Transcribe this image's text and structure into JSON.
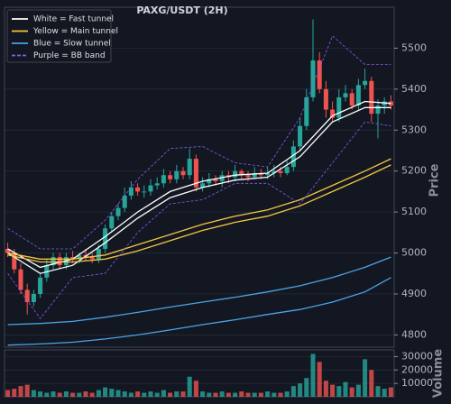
{
  "chart_data": {
    "type": "candlestick",
    "title": "PAXG/USDT (2H)",
    "y_label": "Price",
    "grid": true,
    "up_color": "#26a69a",
    "down_color": "#ef5350",
    "candles": {
      "open": [
        5010,
        5000,
        4960,
        4910,
        4880,
        4900,
        4940,
        4970,
        4990,
        4970,
        4990,
        4985,
        4995,
        4990,
        4985,
        5010,
        5060,
        5090,
        5110,
        5140,
        5160,
        5150,
        5150,
        5165,
        5170,
        5190,
        5180,
        5200,
        5190,
        5230,
        5160,
        5170,
        5180,
        5175,
        5190,
        5185,
        5200,
        5190,
        5185,
        5195,
        5190,
        5195,
        5200,
        5195,
        5210,
        5260,
        5310,
        5380,
        5470,
        5400,
        5350,
        5330,
        5380,
        5390,
        5360,
        5410,
        5420,
        5340,
        5360,
        5370
      ],
      "high": [
        5025,
        5010,
        4975,
        4925,
        4910,
        4950,
        4985,
        5000,
        5000,
        5000,
        5005,
        5000,
        5010,
        5000,
        5020,
        5070,
        5100,
        5120,
        5160,
        5175,
        5170,
        5165,
        5180,
        5185,
        5205,
        5200,
        5215,
        5210,
        5255,
        5240,
        5185,
        5195,
        5190,
        5200,
        5200,
        5215,
        5205,
        5200,
        5210,
        5205,
        5210,
        5215,
        5210,
        5225,
        5275,
        5330,
        5400,
        5570,
        5490,
        5420,
        5370,
        5400,
        5410,
        5400,
        5425,
        5450,
        5430,
        5375,
        5380,
        5385
      ],
      "low": [
        4990,
        4950,
        4900,
        4850,
        4870,
        4890,
        4930,
        4960,
        4960,
        4960,
        4975,
        4975,
        4980,
        4975,
        4975,
        5000,
        5050,
        5080,
        5100,
        5130,
        5140,
        5135,
        5140,
        5155,
        5160,
        5170,
        5170,
        5180,
        5180,
        5150,
        5150,
        5160,
        5165,
        5160,
        5170,
        5175,
        5180,
        5175,
        5180,
        5180,
        5180,
        5185,
        5185,
        5190,
        5200,
        5250,
        5300,
        5370,
        5390,
        5330,
        5320,
        5320,
        5370,
        5350,
        5350,
        5400,
        5320,
        5280,
        5340,
        5350
      ],
      "close": [
        5000,
        4960,
        4910,
        4880,
        4900,
        4940,
        4970,
        4990,
        4970,
        4990,
        4985,
        4995,
        4990,
        4985,
        5010,
        5060,
        5090,
        5110,
        5140,
        5160,
        5150,
        5150,
        5165,
        5170,
        5190,
        5180,
        5200,
        5190,
        5230,
        5160,
        5170,
        5180,
        5175,
        5190,
        5185,
        5200,
        5190,
        5185,
        5195,
        5190,
        5195,
        5200,
        5195,
        5210,
        5260,
        5310,
        5380,
        5470,
        5400,
        5350,
        5330,
        5380,
        5390,
        5360,
        5410,
        5420,
        5340,
        5360,
        5370,
        5360
      ]
    },
    "ylim": [
      4770,
      5600
    ],
    "yticks": [
      4800,
      4900,
      5000,
      5100,
      5200,
      5300,
      5400,
      5500
    ],
    "overlays": [
      {
        "name": "White = Fast tunnel",
        "color": "#ffffff",
        "dash": false,
        "lines": [
          {
            "x": [
              0,
              5,
              10,
              15,
              20,
              25,
              30,
              35,
              40,
              45,
              50,
              55,
              59
            ],
            "values": [
              5010,
              4965,
              4985,
              5040,
              5100,
              5150,
              5175,
              5190,
              5195,
              5250,
              5335,
              5370,
              5365
            ]
          },
          {
            "x": [
              0,
              5,
              10,
              15,
              20,
              25,
              30,
              35,
              40,
              45,
              50,
              55,
              59
            ],
            "values": [
              5000,
              4950,
              4970,
              5025,
              5085,
              5135,
              5160,
              5178,
              5185,
              5235,
              5320,
              5355,
              5355
            ]
          }
        ]
      },
      {
        "name": "Yellow = Main tunnel",
        "color": "#f5c542",
        "dash": false,
        "lines": [
          {
            "x": [
              0,
              5,
              10,
              15,
              20,
              25,
              30,
              35,
              40,
              45,
              50,
              55,
              59
            ],
            "values": [
              5000,
              4985,
              4985,
              4995,
              5020,
              5045,
              5070,
              5090,
              5105,
              5130,
              5165,
              5200,
              5230
            ]
          },
          {
            "x": [
              0,
              5,
              10,
              15,
              20,
              25,
              30,
              35,
              40,
              45,
              50,
              55,
              59
            ],
            "values": [
              4995,
              4978,
              4978,
              4985,
              5005,
              5030,
              5055,
              5075,
              5090,
              5115,
              5150,
              5185,
              5215
            ]
          }
        ]
      },
      {
        "name": "Blue = Slow tunnel",
        "color": "#4aa3e8",
        "dash": false,
        "lines": [
          {
            "x": [
              0,
              5,
              10,
              15,
              20,
              25,
              30,
              35,
              40,
              45,
              50,
              55,
              59
            ],
            "values": [
              4825,
              4828,
              4833,
              4843,
              4855,
              4868,
              4880,
              4892,
              4905,
              4920,
              4940,
              4965,
              4990
            ]
          },
          {
            "x": [
              0,
              5,
              10,
              15,
              20,
              25,
              30,
              35,
              40,
              45,
              50,
              55,
              59
            ],
            "values": [
              4775,
              4778,
              4782,
              4790,
              4800,
              4812,
              4825,
              4837,
              4850,
              4862,
              4880,
              4905,
              4940
            ]
          }
        ]
      },
      {
        "name": "Purple = BB band",
        "color": "#8a5cf0",
        "dash": true,
        "lines": [
          {
            "x": [
              0,
              5,
              10,
              15,
              20,
              25,
              30,
              35,
              40,
              45,
              50,
              55,
              59
            ],
            "values": [
              5060,
              5010,
              5010,
              5080,
              5180,
              5255,
              5260,
              5220,
              5210,
              5330,
              5530,
              5460,
              5460
            ]
          },
          {
            "x": [
              0,
              5,
              10,
              15,
              20,
              25,
              30,
              35,
              40,
              45,
              50,
              55,
              59
            ],
            "values": [
              4950,
              4840,
              4940,
              4950,
              5050,
              5120,
              5130,
              5170,
              5170,
              5120,
              5220,
              5320,
              5310
            ]
          }
        ]
      }
    ],
    "volume": {
      "label": "Volume",
      "ylim": [
        0,
        35000
      ],
      "yticks": [
        10000,
        20000,
        30000
      ],
      "values": [
        5000,
        6000,
        8000,
        9000,
        5000,
        4000,
        3000,
        4000,
        3000,
        4000,
        3000,
        3000,
        4000,
        3000,
        5000,
        7000,
        6000,
        5000,
        4000,
        3000,
        4000,
        3000,
        4000,
        3000,
        5000,
        3000,
        4000,
        4000,
        15000,
        12000,
        4000,
        3000,
        3000,
        4000,
        3000,
        3000,
        4000,
        3000,
        3000,
        3000,
        4000,
        3000,
        3000,
        4000,
        8000,
        10000,
        14000,
        32000,
        26000,
        12000,
        9000,
        8000,
        11000,
        7000,
        9000,
        28000,
        20000,
        8000,
        6000,
        7000
      ]
    }
  }
}
